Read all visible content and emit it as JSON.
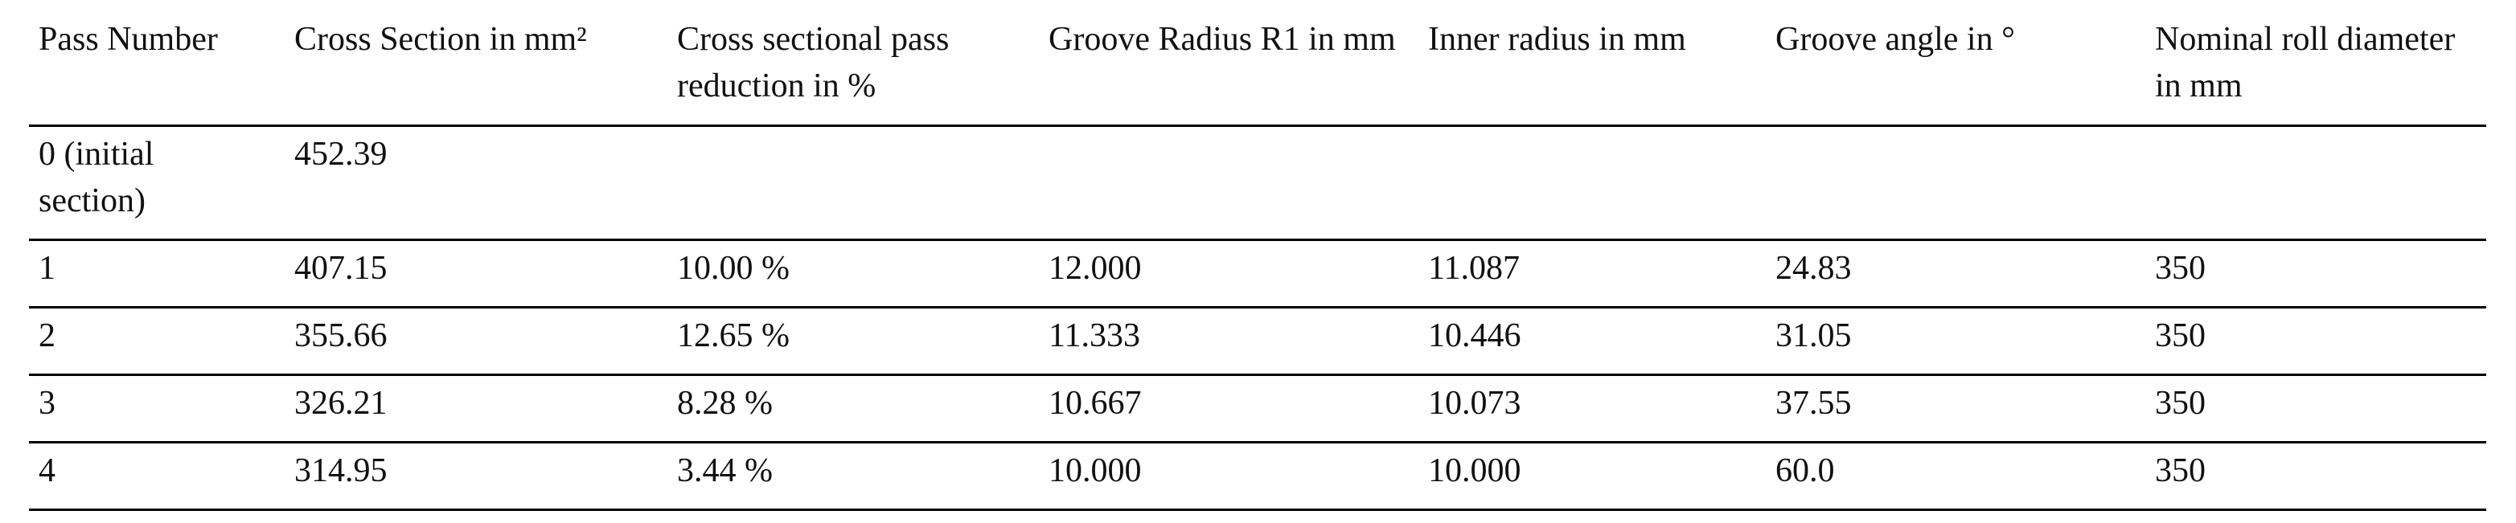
{
  "table": {
    "header": [
      "Pass Number",
      "Cross Section in mm²",
      "Cross sectional pass reduction in %",
      "Groove Radius R1 in mm",
      "Inner radius in mm",
      "Groove angle in °",
      "Nominal roll diameter in mm"
    ],
    "rows": [
      [
        "0 (initial section)",
        "452.39"
      ],
      [
        "1",
        "407.15",
        "10.00 %",
        "12.000",
        "11.087",
        "24.83",
        "350"
      ],
      [
        "2",
        "355.66",
        "12.65 %",
        "11.333",
        "10.446",
        "31.05",
        "350"
      ],
      [
        "3",
        "326.21",
        "8.28 %",
        "10.667",
        "10.073",
        "37.55",
        "350"
      ],
      [
        "4",
        "314.95",
        "3.44 %",
        "10.000",
        "10.000",
        "60.0",
        "350"
      ]
    ]
  }
}
